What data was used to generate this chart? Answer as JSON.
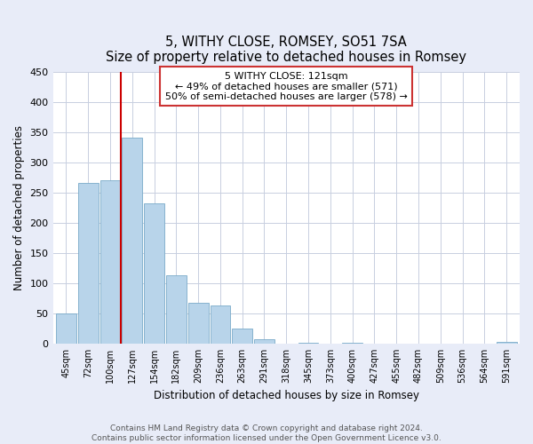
{
  "title": "5, WITHY CLOSE, ROMSEY, SO51 7SA",
  "subtitle": "Size of property relative to detached houses in Romsey",
  "xlabel": "Distribution of detached houses by size in Romsey",
  "ylabel": "Number of detached properties",
  "bar_labels": [
    "45sqm",
    "72sqm",
    "100sqm",
    "127sqm",
    "154sqm",
    "182sqm",
    "209sqm",
    "236sqm",
    "263sqm",
    "291sqm",
    "318sqm",
    "345sqm",
    "373sqm",
    "400sqm",
    "427sqm",
    "455sqm",
    "482sqm",
    "509sqm",
    "536sqm",
    "564sqm",
    "591sqm"
  ],
  "bar_values": [
    50,
    265,
    270,
    340,
    232,
    113,
    68,
    63,
    25,
    7,
    0,
    2,
    0,
    2,
    0,
    0,
    0,
    0,
    0,
    0,
    3
  ],
  "bar_color": "#b8d4ea",
  "bar_edge_color": "#7aaac8",
  "vline_x": 2.5,
  "vline_color": "#cc0000",
  "ylim": [
    0,
    450
  ],
  "yticks": [
    0,
    50,
    100,
    150,
    200,
    250,
    300,
    350,
    400,
    450
  ],
  "annotation_title": "5 WITHY CLOSE: 121sqm",
  "annotation_line1": "← 49% of detached houses are smaller (571)",
  "annotation_line2": "50% of semi-detached houses are larger (578) →",
  "footer_line1": "Contains HM Land Registry data © Crown copyright and database right 2024.",
  "footer_line2": "Contains public sector information licensed under the Open Government Licence v3.0.",
  "bg_color": "#e8ecf8",
  "plot_bg_color": "#ffffff",
  "grid_color": "#c8cfe0"
}
